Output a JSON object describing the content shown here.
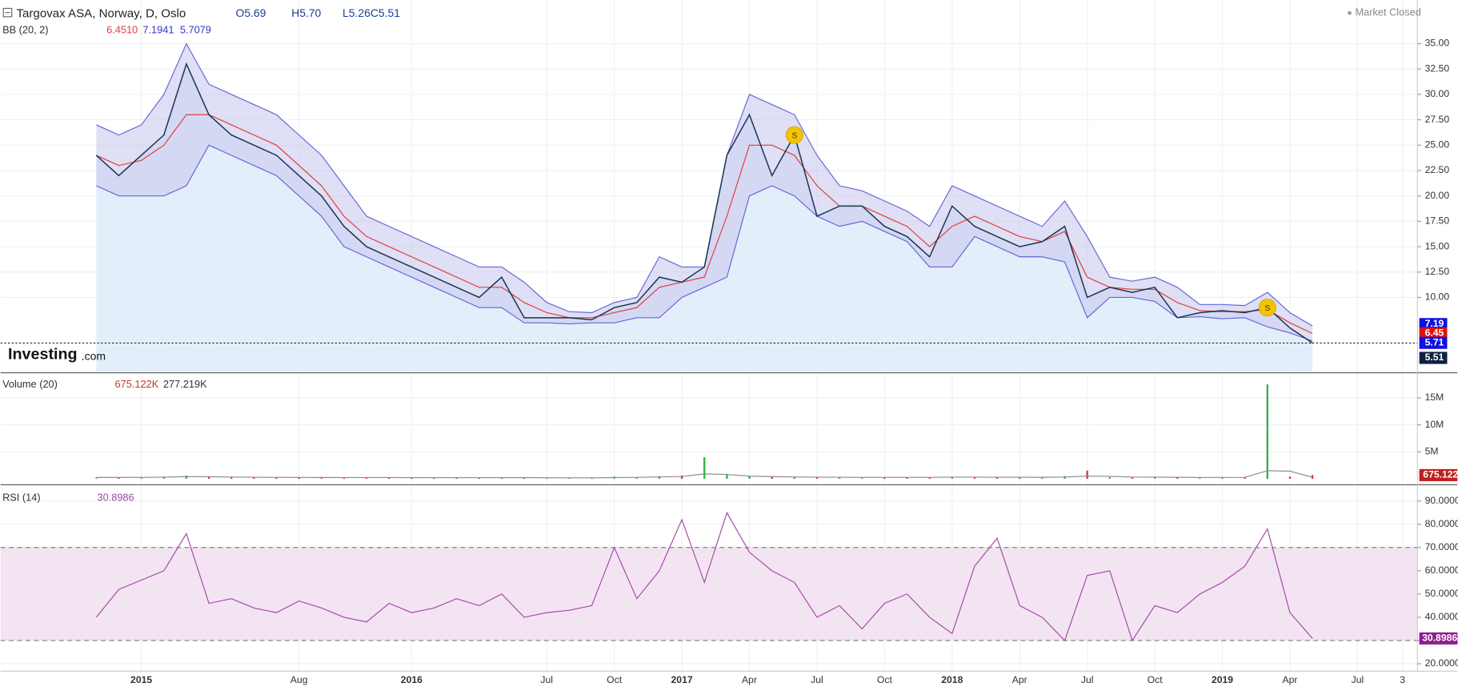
{
  "chart_data": [
    {
      "type": "line",
      "title": "Targovax ASA, Norway, D, Oslo",
      "ohlc": [
        "O5.69",
        "H5.70",
        "L5.26",
        "C5.51"
      ],
      "status": "Market Closed",
      "indicator": "BB (20, 2)",
      "indicator_values": [
        "6.4510",
        "7.1941",
        "5.7079"
      ],
      "logo": [
        "Investing",
        ".com"
      ],
      "ylim": [
        2.67,
        39.3
      ],
      "yticks": [
        {
          "value": 10,
          "label": "10.00"
        },
        {
          "value": 12.5,
          "label": "12.50"
        },
        {
          "value": 15,
          "label": "15.00"
        },
        {
          "value": 17.5,
          "label": "17.50"
        },
        {
          "value": 20,
          "label": "20.00"
        },
        {
          "value": 22.5,
          "label": "22.50"
        },
        {
          "value": 25,
          "label": "25.00"
        },
        {
          "value": 27.5,
          "label": "27.50"
        },
        {
          "value": 30,
          "label": "30.00"
        },
        {
          "value": 32.5,
          "label": "32.50"
        },
        {
          "value": 35,
          "label": "35.00"
        }
      ],
      "close": {
        "color": "#1b3553",
        "last_label": "5.51",
        "values": [
          24,
          22,
          24,
          26,
          33,
          28,
          26,
          25,
          24,
          22,
          20,
          17,
          15,
          14,
          13,
          12,
          11,
          10,
          12,
          8,
          8,
          8,
          7.8,
          9,
          9.5,
          12,
          11.5,
          13,
          24,
          28,
          22,
          26,
          18,
          19,
          19,
          17,
          16,
          14,
          19,
          17,
          16,
          15,
          15.5,
          17,
          10,
          11,
          10.5,
          11,
          8,
          8.5,
          8.7,
          8.5,
          9,
          7,
          5.51,
          null,
          null,
          null,
          null
        ]
      },
      "upper": {
        "color": "#6464d8",
        "last_label": "7.19",
        "values": [
          27,
          26,
          27,
          30,
          35,
          31,
          30,
          29,
          28,
          26,
          24,
          21,
          18,
          17,
          16,
          15,
          14,
          13,
          13,
          11.5,
          9.5,
          8.6,
          8.5,
          9.5,
          10,
          14,
          13,
          13,
          24,
          30,
          29,
          28,
          24,
          21,
          20.5,
          19.5,
          18.5,
          17,
          21,
          20,
          19,
          18,
          17,
          19.5,
          16,
          12,
          11.6,
          12,
          11,
          9.3,
          9.3,
          9.2,
          10.5,
          8.5,
          7.19,
          null,
          null,
          null,
          null
        ]
      },
      "middle": {
        "color": "#e23b3b",
        "last_label": "6.45",
        "values": [
          24,
          23,
          23.5,
          25,
          28,
          28,
          27,
          26,
          25,
          23,
          21,
          18,
          16,
          15,
          14,
          13,
          12,
          11,
          11,
          9.5,
          8.5,
          8,
          8,
          8.5,
          9,
          11,
          11.5,
          12,
          18,
          25,
          25,
          24,
          21,
          19,
          19,
          18,
          17,
          15,
          17,
          18,
          17,
          16,
          15.5,
          16.5,
          12,
          11,
          10.8,
          10.8,
          9.5,
          8.7,
          8.6,
          8.6,
          8.8,
          7.5,
          6.45,
          null,
          null,
          null,
          null
        ]
      },
      "lower": {
        "color": "#6464d8",
        "last_label": "5.71",
        "values": [
          21,
          20,
          20,
          20,
          21,
          25,
          24,
          23,
          22,
          20,
          18,
          15,
          14,
          13,
          12,
          11,
          10,
          9,
          9,
          7.5,
          7.5,
          7.4,
          7.5,
          7.5,
          8,
          8,
          10,
          11,
          12,
          20,
          21,
          20,
          18,
          17,
          17.5,
          16.5,
          15.5,
          13,
          13,
          16,
          15,
          14,
          14,
          13.5,
          8,
          10,
          10,
          9.6,
          8,
          8.1,
          7.9,
          8,
          7.1,
          6.5,
          5.71,
          null,
          null,
          null,
          null
        ]
      },
      "annotations": [
        {
          "text": "S",
          "point": 31
        },
        {
          "text": "S",
          "point": 52
        }
      ]
    },
    {
      "type": "bar",
      "indicator": "Volume (20)",
      "indicator_values": [
        "675.122K",
        "277.219K"
      ],
      "last_label": "675.122",
      "ylim": [
        0,
        19500000
      ],
      "yticks": [
        {
          "value": 5000000,
          "label": "5M"
        },
        {
          "value": 10000000,
          "label": "10M"
        },
        {
          "value": 15000000,
          "label": "15M"
        }
      ],
      "up_color": "#2fb344",
      "down_color": "#e03030",
      "ma_color": "#8a8a8a",
      "values": [
        200000,
        250000,
        300000,
        400000,
        600000,
        300000,
        250000,
        250000,
        200000,
        250000,
        200000,
        200000,
        250000,
        200000,
        200000,
        200000,
        200000,
        200000,
        250000,
        200000,
        150000,
        150000,
        200000,
        400000,
        300000,
        500000,
        600000,
        4000000,
        900000,
        500000,
        400000,
        300000,
        250000,
        300000,
        200000,
        300000,
        250000,
        250000,
        400000,
        300000,
        250000,
        300000,
        250000,
        500000,
        1500000,
        300000,
        250000,
        300000,
        250000,
        200000,
        250000,
        300000,
        17500000,
        400000,
        675122,
        null,
        null,
        null,
        null
      ],
      "ma": [
        250000,
        250000,
        260000,
        300000,
        400000,
        380000,
        320000,
        280000,
        260000,
        250000,
        230000,
        220000,
        220000,
        220000,
        210000,
        200000,
        200000,
        200000,
        210000,
        210000,
        190000,
        170000,
        170000,
        220000,
        260000,
        330000,
        420000,
        900000,
        800000,
        500000,
        400000,
        330000,
        290000,
        280000,
        260000,
        260000,
        260000,
        260000,
        300000,
        300000,
        280000,
        280000,
        270000,
        320000,
        500000,
        450000,
        320000,
        290000,
        270000,
        240000,
        240000,
        260000,
        1500000,
        1400000,
        277219,
        null,
        null,
        null,
        null
      ]
    },
    {
      "type": "line",
      "indicator": "RSI (14)",
      "indicator_values": [
        "30.8986"
      ],
      "last_label": "30.8986",
      "color": "#a347a8",
      "band": [
        30,
        70
      ],
      "band_color": "#f3e4f2",
      "ylim": [
        16.8,
        96.4
      ],
      "yticks": [
        {
          "value": 20,
          "label": "20.0000"
        },
        {
          "value": 30,
          "label": "30.0000"
        },
        {
          "value": 40,
          "label": "40.0000"
        },
        {
          "value": 50,
          "label": "50.0000"
        },
        {
          "value": 60,
          "label": "60.0000"
        },
        {
          "value": 70,
          "label": "70.0000"
        },
        {
          "value": 80,
          "label": "80.0000"
        },
        {
          "value": 90,
          "label": "90.0000"
        }
      ],
      "categories": [
        null,
        null,
        "2015",
        null,
        null,
        null,
        null,
        null,
        null,
        "Aug",
        null,
        null,
        null,
        null,
        "2016",
        null,
        null,
        null,
        null,
        null,
        "Jul",
        null,
        null,
        "Oct",
        null,
        null,
        "2017",
        null,
        null,
        "Apr",
        null,
        null,
        "Jul",
        null,
        null,
        "Oct",
        null,
        null,
        "2018",
        null,
        null,
        "Apr",
        null,
        null,
        "Jul",
        null,
        null,
        "Oct",
        null,
        null,
        "2019",
        null,
        null,
        "Apr",
        null,
        null,
        "Jul",
        null,
        "3"
      ],
      "values": [
        40,
        52,
        56,
        60,
        76,
        46,
        48,
        44,
        42,
        47,
        44,
        40,
        38,
        46,
        42,
        44,
        48,
        45,
        50,
        40,
        42,
        43,
        45,
        70,
        48,
        60,
        82,
        55,
        85,
        68,
        60,
        55,
        40,
        45,
        35,
        46,
        50,
        40,
        33,
        62,
        74,
        45,
        40,
        30,
        58,
        60,
        30,
        45,
        42,
        50,
        55,
        62,
        78,
        42,
        30.8986,
        null,
        null,
        null,
        null
      ]
    }
  ]
}
